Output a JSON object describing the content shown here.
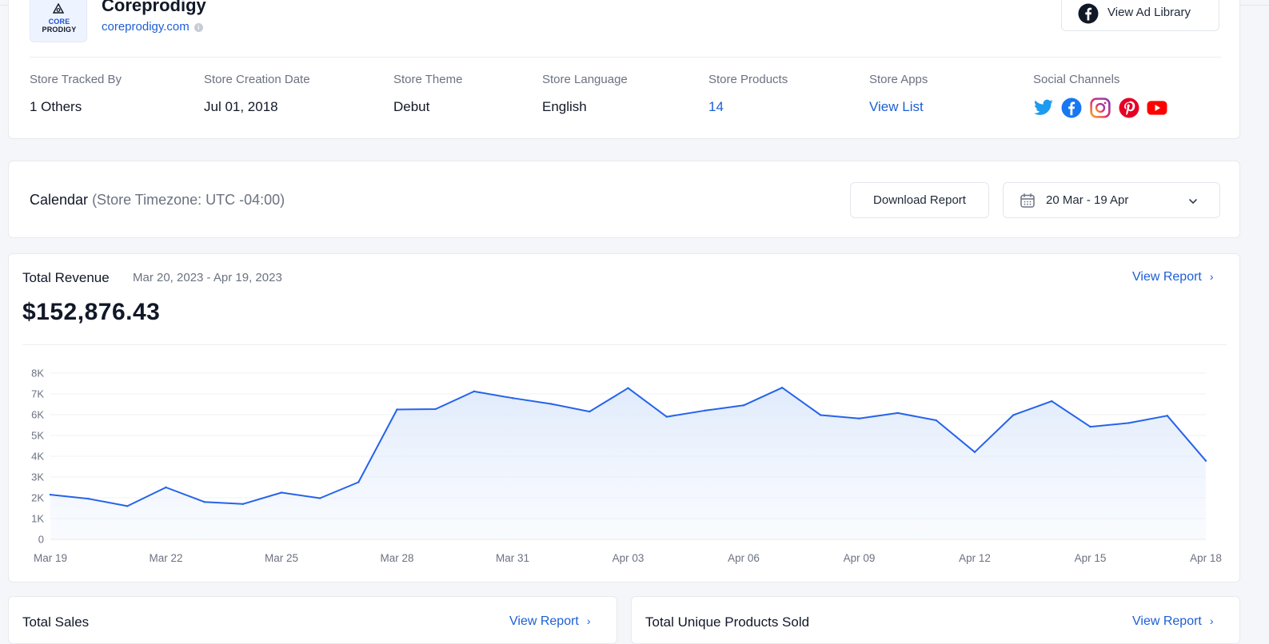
{
  "store": {
    "logo_text_1": "CORE",
    "logo_text_2": "PRODIGY",
    "name": "Coreprodigy",
    "domain": "coreprodigy.com",
    "info_glyph": "i",
    "ad_library_label": "View Ad Library",
    "meta": [
      {
        "label": "Store Tracked By",
        "value": "1 Others"
      },
      {
        "label": "Store Creation Date",
        "value": "Jul 01, 2018"
      },
      {
        "label": "Store Theme",
        "value": "Debut"
      },
      {
        "label": "Store Language",
        "value": "English"
      },
      {
        "label": "Store Products",
        "value": "14"
      },
      {
        "label": "Store Apps",
        "value": "View List"
      },
      {
        "label": "Social Channels",
        "value": ""
      }
    ],
    "social_channels": [
      "twitter-icon",
      "facebook-icon",
      "instagram-icon",
      "pinterest-icon",
      "youtube-icon"
    ]
  },
  "calendar": {
    "title": "Calendar",
    "timezone": "(Store Timezone: UTC -04:00)",
    "download_label": "Download Report",
    "date_range": "20 Mar - 19 Apr"
  },
  "revenue": {
    "title": "Total Revenue",
    "range": "Mar 20, 2023 - Apr 19, 2023",
    "view_report": "View Report",
    "arrow": "›",
    "total": "$152,876.43"
  },
  "bottom": {
    "sales_title": "Total Sales",
    "unique_title": "Total Unique Products Sold",
    "view_report": "View Report",
    "arrow": "›"
  },
  "colors": {
    "accent": "#1d5fd6",
    "line": "#2563eb",
    "twitter": "#1d9bf0",
    "facebook": "#1877f2",
    "pinterest": "#e60023",
    "youtube": "#ff0000"
  },
  "chart_data": {
    "type": "area",
    "title": "",
    "xlabel": "",
    "ylabel": "",
    "ylim": [
      0,
      8000
    ],
    "yticks": [
      0,
      1000,
      2000,
      3000,
      4000,
      5000,
      6000,
      7000,
      8000
    ],
    "ytick_labels": [
      "0",
      "1K",
      "2K",
      "3K",
      "4K",
      "5K",
      "6K",
      "7K",
      "8K"
    ],
    "grid": true,
    "xtick_labels": [
      "Mar 19",
      "Mar 22",
      "Mar 25",
      "Mar 28",
      "Mar 31",
      "Apr 03",
      "Apr 06",
      "Apr 09",
      "Apr 12",
      "Apr 15",
      "Apr 18"
    ],
    "x": [
      "Mar 19",
      "Mar 20",
      "Mar 21",
      "Mar 22",
      "Mar 23",
      "Mar 24",
      "Mar 25",
      "Mar 26",
      "Mar 27",
      "Mar 28",
      "Mar 29",
      "Mar 30",
      "Mar 31",
      "Apr 01",
      "Apr 02",
      "Apr 03",
      "Apr 04",
      "Apr 05",
      "Apr 06",
      "Apr 07",
      "Apr 08",
      "Apr 09",
      "Apr 10",
      "Apr 11",
      "Apr 12",
      "Apr 13",
      "Apr 14",
      "Apr 15",
      "Apr 16",
      "Apr 17",
      "Apr 18"
    ],
    "series": [
      {
        "values": [
          2150,
          1950,
          1600,
          2500,
          1800,
          1700,
          2250,
          1980,
          2750,
          6250,
          6270,
          7120,
          6800,
          6520,
          6150,
          7280,
          5900,
          6200,
          6450,
          7300,
          5980,
          5820,
          6080,
          5730,
          4200,
          5980,
          6650,
          5420,
          5600,
          5950,
          3780
        ]
      }
    ]
  }
}
